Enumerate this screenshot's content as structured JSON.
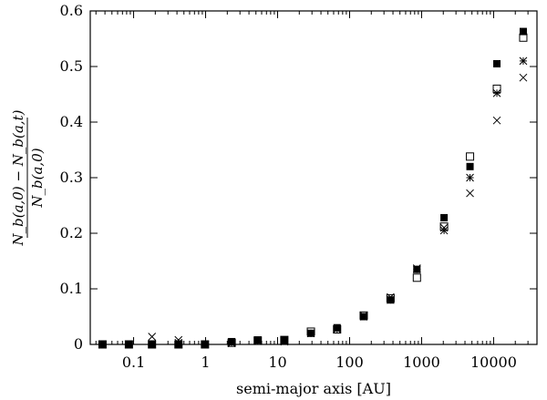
{
  "chart_data": {
    "type": "scatter",
    "title": "",
    "xlabel": "semi-major axis [AU]",
    "ylabel": {
      "numerator": "N_b(a,0) − N_b(a,t)",
      "denominator": "N_b(a,0)"
    },
    "xscale": "log",
    "xlim": [
      0.025,
      40000
    ],
    "ylim": [
      0,
      0.6
    ],
    "xticks": [
      {
        "value": 0.1,
        "label": "0.1"
      },
      {
        "value": 1,
        "label": "1"
      },
      {
        "value": 10,
        "label": "10"
      },
      {
        "value": 100,
        "label": "100"
      },
      {
        "value": 1000,
        "label": "1000"
      },
      {
        "value": 10000,
        "label": "10000"
      }
    ],
    "yticks": [
      {
        "value": 0,
        "label": "0"
      },
      {
        "value": 0.1,
        "label": "0.1"
      },
      {
        "value": 0.2,
        "label": "0.2"
      },
      {
        "value": 0.3,
        "label": "0.3"
      },
      {
        "value": 0.4,
        "label": "0.4"
      },
      {
        "value": 0.5,
        "label": "0.5"
      },
      {
        "value": 0.6,
        "label": "0.6"
      }
    ],
    "grid": false,
    "legend": "none",
    "series": [
      {
        "marker": "filled-square",
        "points": [
          [
            0.037,
            0.0
          ],
          [
            0.086,
            0.0
          ],
          [
            0.18,
            0.0
          ],
          [
            0.42,
            0.0
          ],
          [
            0.98,
            0.0
          ],
          [
            2.3,
            0.005
          ],
          [
            5.3,
            0.008
          ],
          [
            12.4,
            0.008
          ],
          [
            29,
            0.02
          ],
          [
            67,
            0.03
          ],
          [
            157,
            0.05
          ],
          [
            370,
            0.08
          ],
          [
            860,
            0.135
          ],
          [
            2050,
            0.228
          ],
          [
            4700,
            0.32
          ],
          [
            11100,
            0.505
          ],
          [
            25800,
            0.563
          ]
        ]
      },
      {
        "marker": "open-square",
        "points": [
          [
            0.037,
            0.0
          ],
          [
            0.086,
            0.0
          ],
          [
            0.18,
            0.0
          ],
          [
            0.42,
            0.0
          ],
          [
            0.98,
            0.0
          ],
          [
            2.3,
            0.003
          ],
          [
            5.3,
            0.007
          ],
          [
            12.4,
            0.008
          ],
          [
            29,
            0.023
          ],
          [
            67,
            0.027
          ],
          [
            157,
            0.052
          ],
          [
            370,
            0.083
          ],
          [
            860,
            0.12
          ],
          [
            2050,
            0.212
          ],
          [
            4700,
            0.338
          ],
          [
            11100,
            0.46
          ],
          [
            25800,
            0.552
          ]
        ]
      },
      {
        "marker": "asterisk",
        "points": [
          [
            0.037,
            0.0
          ],
          [
            0.086,
            0.0
          ],
          [
            0.18,
            0.0
          ],
          [
            0.42,
            0.003
          ],
          [
            0.98,
            0.0
          ],
          [
            2.3,
            0.003
          ],
          [
            5.3,
            0.007
          ],
          [
            12.4,
            0.008
          ],
          [
            29,
            0.02
          ],
          [
            67,
            0.027
          ],
          [
            157,
            0.05
          ],
          [
            370,
            0.08
          ],
          [
            860,
            0.135
          ],
          [
            2050,
            0.205
          ],
          [
            4700,
            0.3
          ],
          [
            11100,
            0.452
          ],
          [
            25800,
            0.51
          ]
        ]
      },
      {
        "marker": "cross",
        "points": [
          [
            0.037,
            0.0
          ],
          [
            0.086,
            0.0
          ],
          [
            0.18,
            0.014
          ],
          [
            0.42,
            0.008
          ],
          [
            0.98,
            0.0
          ],
          [
            2.3,
            0.002
          ],
          [
            5.3,
            0.006
          ],
          [
            12.4,
            0.005
          ],
          [
            29,
            0.02
          ],
          [
            67,
            0.028
          ],
          [
            157,
            0.052
          ],
          [
            370,
            0.085
          ],
          [
            860,
            0.137
          ],
          [
            2050,
            0.21
          ],
          [
            4700,
            0.272
          ],
          [
            11100,
            0.403
          ],
          [
            25800,
            0.48
          ]
        ]
      }
    ]
  }
}
